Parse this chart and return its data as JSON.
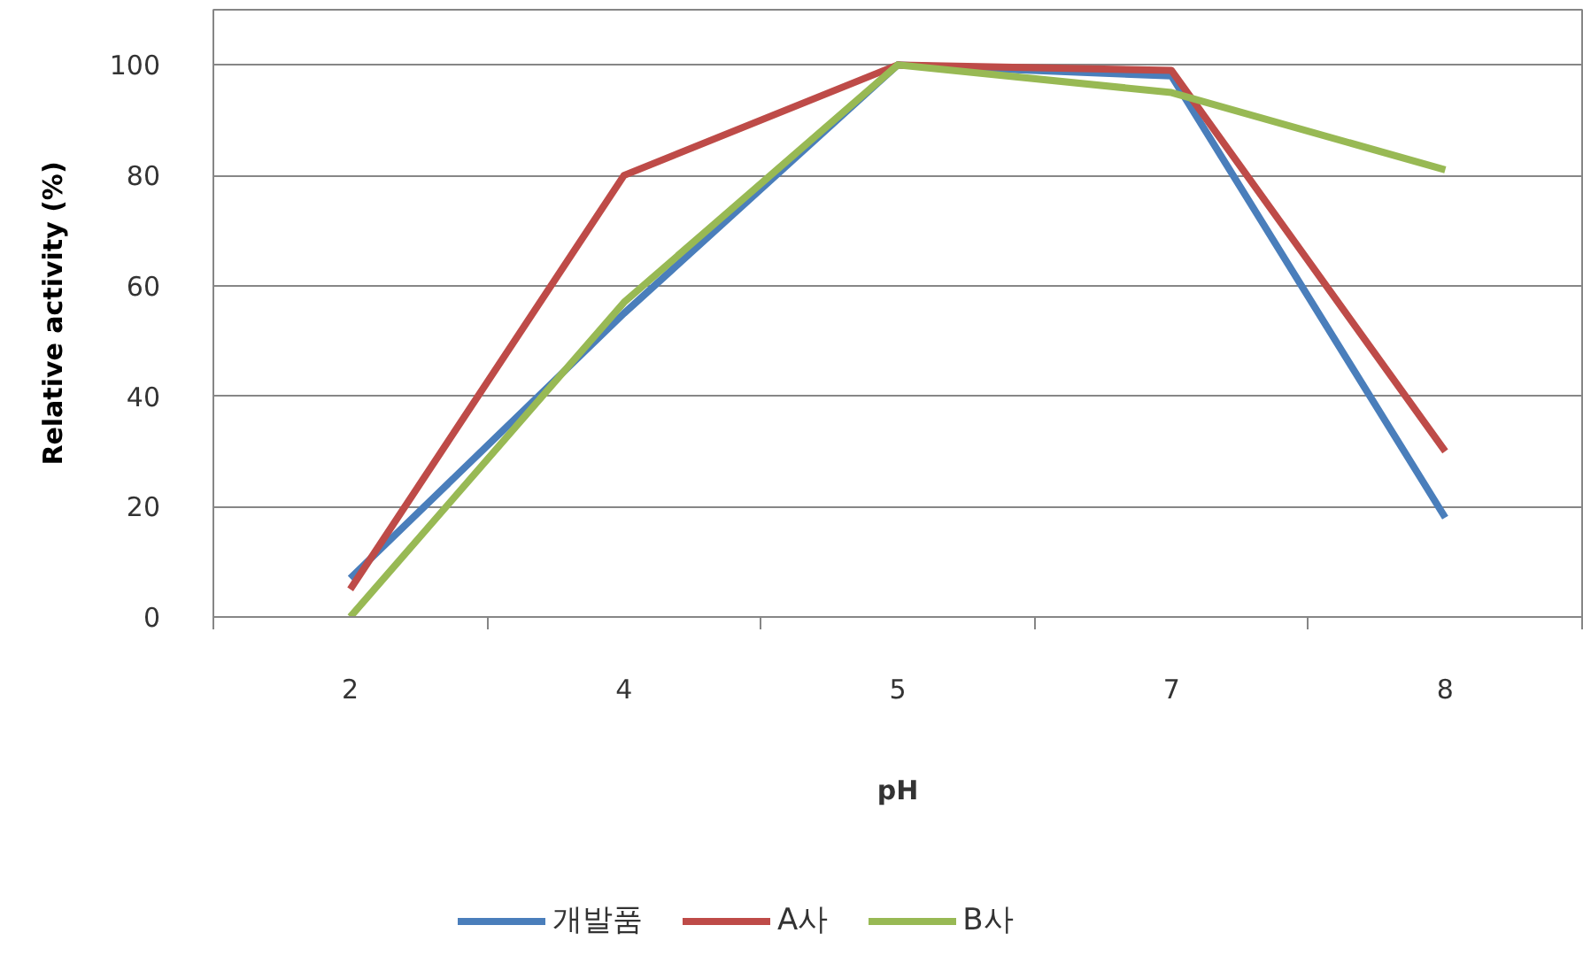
{
  "chart_data": {
    "type": "line",
    "xlabel": "pH",
    "ylabel": "Relative activity (%)",
    "categories": [
      "2",
      "4",
      "5",
      "7",
      "8"
    ],
    "series": [
      {
        "name": "개발품",
        "color": "#4a7ebb",
        "values": [
          7,
          55,
          100,
          98,
          18
        ]
      },
      {
        "name": "A사",
        "color": "#be4b48",
        "values": [
          5,
          80,
          100,
          99,
          30
        ]
      },
      {
        "name": "B사",
        "color": "#98b954",
        "values": [
          0,
          57,
          100,
          95,
          81
        ]
      }
    ],
    "ylim": [
      0,
      110
    ],
    "yticks": [
      0,
      20,
      40,
      60,
      80,
      100
    ],
    "grid": "y",
    "legend": "bottom"
  }
}
